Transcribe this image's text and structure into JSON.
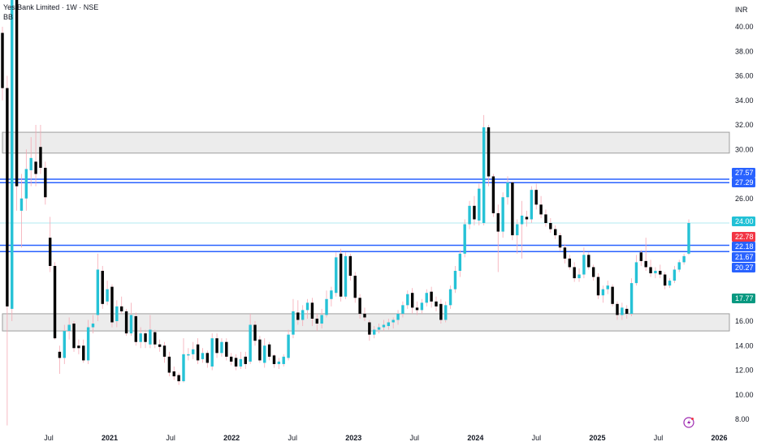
{
  "header": {
    "title": "Yes Bank Limited · 1W · NSE",
    "indicator": "BB",
    "currency": "INR"
  },
  "colors": {
    "up": "#26c2d6",
    "down": "#000000",
    "wick": "#f5a9b4",
    "zone_fill": "#ececec",
    "zone_border": "#9e9e9e",
    "level_line": "#2962ff",
    "last_price_line": "#b2ebf2"
  },
  "icons": {
    "alert": "lightning-icon"
  },
  "chart_data": {
    "type": "candlestick",
    "title": "Yes Bank Limited · 1W · NSE",
    "ylim": [
      8,
      40
    ],
    "y_ticks": [
      "40.00",
      "38.00",
      "36.00",
      "34.00",
      "32.00",
      "30.00",
      "26.00",
      "16.00",
      "14.00",
      "12.00",
      "10.00",
      "8.00"
    ],
    "x_ticks": [
      "Jul",
      "2021",
      "Jul",
      "2022",
      "Jul",
      "2023",
      "Jul",
      "2024",
      "Jul",
      "2025",
      "Jul",
      "2026"
    ],
    "zones": [
      {
        "from": 29.7,
        "to": 31.4
      },
      {
        "from": 15.2,
        "to": 16.6
      }
    ],
    "levels": [
      27.57,
      27.29,
      22.18,
      21.67
    ],
    "last_price": 24.0,
    "price_labels": [
      {
        "value": "27.57",
        "color": "#2962ff"
      },
      {
        "value": "27.29",
        "color": "#2962ff"
      },
      {
        "value": "24.00",
        "color": "#22c1d6"
      },
      {
        "value": "22.78",
        "color": "#f23645"
      },
      {
        "value": "22.18",
        "color": "#2962ff"
      },
      {
        "value": "21.67",
        "color": "#2962ff"
      },
      {
        "value": "20.27",
        "color": "#2962ff"
      },
      {
        "value": "17.77",
        "color": "#089981"
      }
    ],
    "ohlc": [
      [
        39.5,
        40,
        34,
        35
      ],
      [
        35,
        36,
        7.5,
        17.2
      ],
      [
        17,
        46,
        16,
        43
      ],
      [
        43,
        44,
        25,
        27
      ],
      [
        25,
        28,
        22,
        26
      ],
      [
        26,
        30,
        25,
        28.4
      ],
      [
        28.3,
        31,
        27,
        29.3
      ],
      [
        29,
        32,
        27,
        28
      ],
      [
        30.2,
        32,
        28,
        28.5
      ],
      [
        28.5,
        29,
        25.5,
        26.1
      ],
      [
        22.8,
        24.5,
        20,
        20.5
      ],
      [
        20.5,
        20.8,
        14.5,
        14.6
      ],
      [
        13.5,
        14,
        11.7,
        13
      ],
      [
        13,
        15.7,
        12.5,
        15.2
      ],
      [
        15.2,
        16.3,
        14.5,
        15.7
      ],
      [
        15.8,
        16,
        13.5,
        13.8
      ],
      [
        14,
        14.5,
        13.3,
        13.8
      ],
      [
        14,
        14.5,
        12.6,
        12.8
      ],
      [
        12.8,
        16.1,
        12.5,
        15.5
      ],
      [
        15.5,
        16.5,
        15,
        15.8
      ],
      [
        16.5,
        21.5,
        16,
        20.2
      ],
      [
        20.1,
        20.5,
        17,
        17.4
      ],
      [
        17.6,
        19.3,
        17.3,
        18.6
      ],
      [
        18.8,
        19,
        15.5,
        15.9
      ],
      [
        16,
        17.7,
        15.5,
        17.2
      ],
      [
        17.2,
        18,
        16.6,
        16.8
      ],
      [
        16.8,
        17,
        14.8,
        15
      ],
      [
        15,
        17.5,
        14.8,
        16.5
      ],
      [
        16.4,
        16.7,
        14,
        14.3
      ],
      [
        14.3,
        15.5,
        13.8,
        15
      ],
      [
        15,
        15.3,
        13.8,
        14.3
      ],
      [
        14.1,
        16.5,
        13.8,
        15.3
      ],
      [
        15.1,
        15.3,
        13.8,
        14.1
      ],
      [
        14.1,
        14.5,
        13.5,
        13.9
      ],
      [
        14,
        14.3,
        12.6,
        13.1
      ],
      [
        13.1,
        13.5,
        11.5,
        11.8
      ],
      [
        11.9,
        12.3,
        11.2,
        11.5
      ],
      [
        11.6,
        11.8,
        10.8,
        11.1
      ],
      [
        11.1,
        14.6,
        11,
        13.3
      ],
      [
        13.2,
        13.8,
        12.8,
        13.3
      ],
      [
        13.3,
        14.3,
        12.9,
        13.7
      ],
      [
        14.1,
        14.6,
        12.5,
        12.8
      ],
      [
        12.9,
        13.8,
        12.6,
        13.4
      ],
      [
        13.4,
        13.6,
        12.2,
        12.6
      ],
      [
        12.3,
        15,
        12,
        14.6
      ],
      [
        14.6,
        15,
        13,
        13.4
      ],
      [
        13.4,
        14.6,
        13.1,
        14.3
      ],
      [
        14.3,
        14.6,
        12.8,
        13.1
      ],
      [
        13.1,
        13.4,
        12.4,
        12.7
      ],
      [
        13,
        13.3,
        12,
        12.3
      ],
      [
        12.3,
        13.5,
        12.1,
        12.9
      ],
      [
        13.1,
        13.5,
        12.1,
        12.5
      ],
      [
        12.7,
        16.6,
        12.5,
        15.7
      ],
      [
        15.7,
        16,
        14,
        14.4
      ],
      [
        14.5,
        14.8,
        12.6,
        12.8
      ],
      [
        12.6,
        14.6,
        12.2,
        14
      ],
      [
        14.1,
        14.3,
        12.8,
        13.1
      ],
      [
        13.2,
        13.3,
        12.2,
        12.5
      ],
      [
        12.5,
        13,
        12.1,
        12.7
      ],
      [
        12.5,
        13.3,
        12.3,
        13.1
      ],
      [
        13,
        15.3,
        12.8,
        14.9
      ],
      [
        14.9,
        17.8,
        14.6,
        16.8
      ],
      [
        16.7,
        17.7,
        15.7,
        16.1
      ],
      [
        16.1,
        17.3,
        15.6,
        16.9
      ],
      [
        16.9,
        17.8,
        16.2,
        17.5
      ],
      [
        17.5,
        17.9,
        15.6,
        16.2
      ],
      [
        16.2,
        16.6,
        15.2,
        15.8
      ],
      [
        15.8,
        17,
        15.4,
        16.5
      ],
      [
        16.5,
        18.5,
        16.3,
        17.8
      ],
      [
        17.8,
        18.8,
        17.2,
        18.5
      ],
      [
        18.3,
        21.6,
        18,
        21.2
      ],
      [
        21.5,
        21.9,
        17.6,
        18
      ],
      [
        18,
        21.6,
        17.8,
        21.3
      ],
      [
        21.3,
        21.5,
        19.3,
        19.7
      ],
      [
        19.7,
        20,
        17.5,
        17.9
      ],
      [
        17.9,
        18.2,
        16.2,
        16.6
      ],
      [
        16.6,
        17.1,
        16,
        16.3
      ],
      [
        15.9,
        16.1,
        14.4,
        14.9
      ],
      [
        14.9,
        15.6,
        14.6,
        15.3
      ],
      [
        15.3,
        15.8,
        15,
        15.5
      ],
      [
        15.5,
        16.1,
        15.2,
        15.7
      ],
      [
        15.6,
        16.2,
        15.3,
        15.9
      ],
      [
        15.9,
        16.3,
        15.4,
        16.1
      ],
      [
        16.1,
        16.9,
        15.7,
        16.6
      ],
      [
        16.6,
        17.6,
        16.3,
        17.3
      ],
      [
        17.3,
        18.5,
        17,
        18.2
      ],
      [
        18.3,
        18.7,
        16.6,
        17.1
      ],
      [
        17.1,
        17.6,
        16.5,
        16.9
      ],
      [
        16.9,
        17.8,
        16.6,
        17.5
      ],
      [
        17.5,
        18.6,
        17.2,
        18.3
      ],
      [
        18.4,
        18.8,
        17.1,
        17.6
      ],
      [
        17.6,
        18,
        16.8,
        17.2
      ],
      [
        17.4,
        17.8,
        15.8,
        16.1
      ],
      [
        16.1,
        17.6,
        15.9,
        17.3
      ],
      [
        17.3,
        18.9,
        17,
        18.6
      ],
      [
        18.6,
        20.5,
        18.3,
        20.1
      ],
      [
        20.1,
        21.8,
        19.6,
        21.5
      ],
      [
        21.5,
        24.3,
        21.2,
        23.9
      ],
      [
        23.9,
        25.8,
        23.5,
        25.4
      ],
      [
        25.4,
        26.2,
        23.8,
        24.3
      ],
      [
        24.2,
        27.2,
        23.8,
        26.8
      ],
      [
        24,
        32.8,
        23.8,
        31.8
      ],
      [
        31.8,
        32,
        27,
        27.8
      ],
      [
        27.8,
        28,
        24.5,
        24.8
      ],
      [
        24.8,
        25.5,
        20,
        23.3
      ],
      [
        23.3,
        26.5,
        22.8,
        26.1
      ],
      [
        26.1,
        27.8,
        25.5,
        27.3
      ],
      [
        27.3,
        27.4,
        22.6,
        23
      ],
      [
        23,
        24.3,
        21.5,
        23.9
      ],
      [
        23.9,
        25.8,
        21.1,
        24.6
      ],
      [
        24.5,
        25,
        23.7,
        24.3
      ],
      [
        24.3,
        27,
        24,
        26.7
      ],
      [
        26.7,
        27.2,
        25.1,
        25.5
      ],
      [
        25.5,
        26.2,
        24.4,
        24.7
      ],
      [
        24.7,
        25.1,
        23.7,
        24
      ],
      [
        24,
        24.4,
        23.2,
        23.5
      ],
      [
        23.5,
        23.8,
        22.7,
        23
      ],
      [
        23,
        23.2,
        21.7,
        22
      ],
      [
        22,
        22.3,
        20.7,
        21.1
      ],
      [
        21.1,
        21.4,
        20.2,
        20.4
      ],
      [
        20.4,
        20.8,
        19.2,
        19.5
      ],
      [
        19.5,
        20.3,
        19.2,
        19.8
      ],
      [
        19.8,
        22,
        19.5,
        21.4
      ],
      [
        21.4,
        21.6,
        20.2,
        20.4
      ],
      [
        20.4,
        20.6,
        19.3,
        19.6
      ],
      [
        19.6,
        19.9,
        17.8,
        18.1
      ],
      [
        18.1,
        18.9,
        17.5,
        18.6
      ],
      [
        18.6,
        19.3,
        18.2,
        18.9
      ],
      [
        18.8,
        19,
        17.2,
        17.4
      ],
      [
        17.4,
        17.6,
        16.1,
        16.5
      ],
      [
        16.5,
        17.5,
        16.1,
        17.1
      ],
      [
        17,
        17.3,
        16.2,
        16.6
      ],
      [
        16.6,
        19.5,
        16.4,
        19.1
      ],
      [
        19.1,
        21.4,
        18.9,
        20.8
      ],
      [
        21.6,
        21.8,
        20.5,
        20.9
      ],
      [
        20.9,
        22.8,
        20.1,
        20.4
      ],
      [
        20.4,
        21,
        19.6,
        19.9
      ],
      [
        19.9,
        20.4,
        19.5,
        20.1
      ],
      [
        20.1,
        20.6,
        19.5,
        19.8
      ],
      [
        19.8,
        20,
        18.6,
        18.9
      ],
      [
        18.9,
        19.5,
        18.7,
        19.3
      ],
      [
        19.3,
        20.5,
        19.1,
        20.2
      ],
      [
        20.2,
        21,
        20,
        20.8
      ],
      [
        20.8,
        21.5,
        20.6,
        21.3
      ],
      [
        21.5,
        24.3,
        21.4,
        24
      ]
    ]
  }
}
